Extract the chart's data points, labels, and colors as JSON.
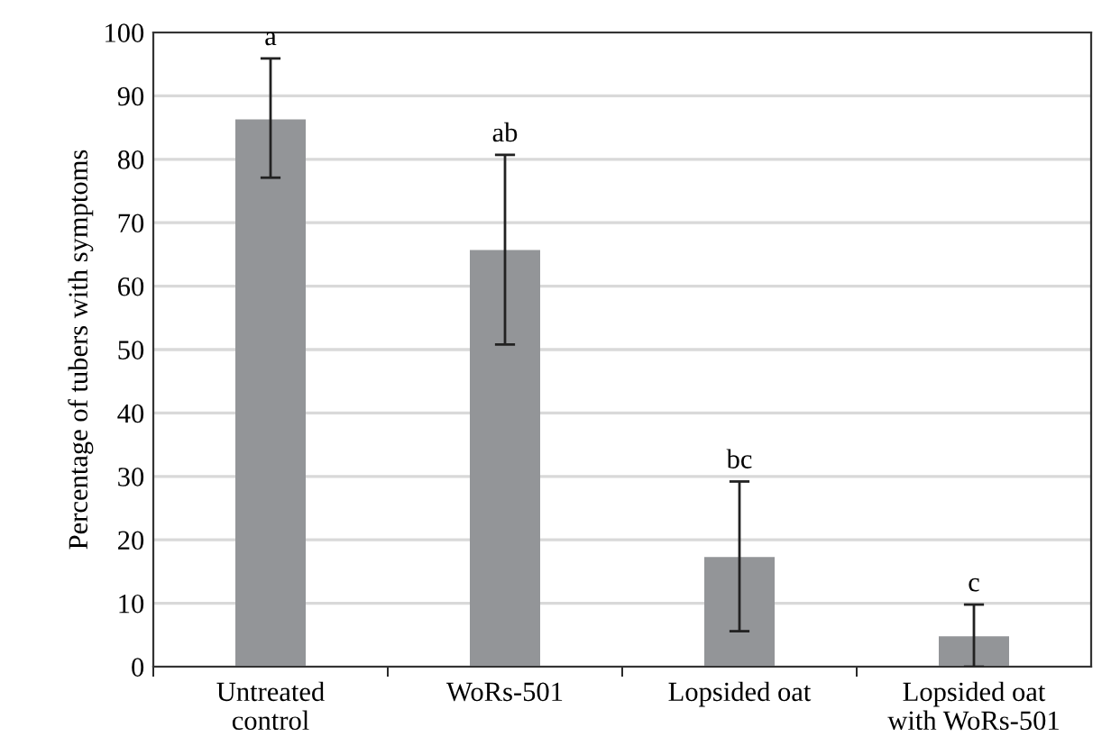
{
  "chart_data": {
    "type": "bar",
    "ylabel": "Percentage of tubers with symptoms",
    "categories": [
      "Untreated\ncontrol",
      "WoRs-501",
      "Lopsided oat",
      "Lopsided oat\nwith WoRs-501"
    ],
    "values": [
      86.3,
      65.7,
      17.3,
      4.8
    ],
    "color": "#939598",
    "errors": [
      [
        77.1,
        95.9
      ],
      [
        50.8,
        80.7
      ],
      [
        5.6,
        29.2
      ],
      [
        0,
        9.8
      ]
    ],
    "ylim": [
      0,
      100
    ],
    "yticks": [
      0,
      10,
      20,
      30,
      40,
      50,
      60,
      70,
      80,
      90,
      100
    ],
    "grid": "y",
    "annotations": [
      {
        "text": "a",
        "x": "Untreated\ncontrol",
        "y": 95.9
      },
      {
        "text": "ab",
        "x": "WoRs-501",
        "y": 80.7
      },
      {
        "text": "bc",
        "x": "Lopsided oat",
        "y": 29.2
      },
      {
        "text": "c",
        "x": "Lopsided oat\nwith WoRs-501",
        "y": 9.8
      }
    ]
  }
}
